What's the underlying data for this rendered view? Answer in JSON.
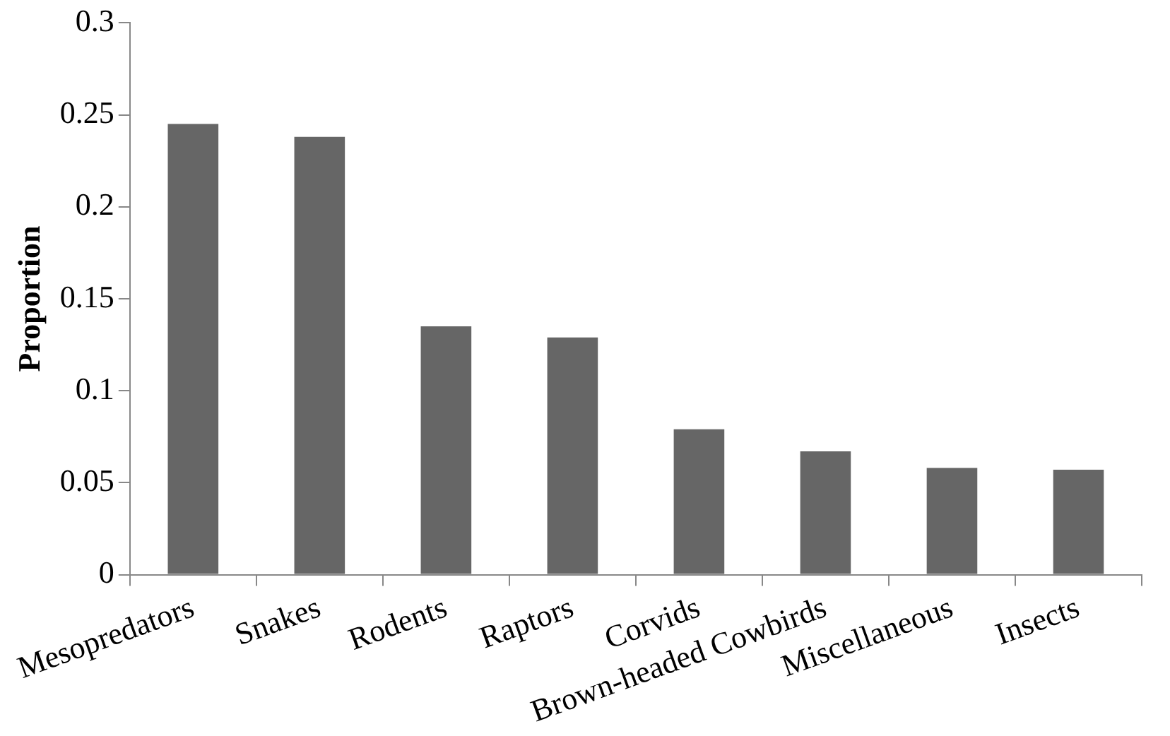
{
  "chart_data": {
    "type": "bar",
    "ylabel": "Proportion",
    "categories": [
      "Mesopredators",
      "Snakes",
      "Rodents",
      "Raptors",
      "Corvids",
      "Brown-headed Cowbirds",
      "Miscellaneous",
      "Insects"
    ],
    "values": [
      0.245,
      0.238,
      0.135,
      0.129,
      0.079,
      0.067,
      0.058,
      0.057
    ],
    "color": "#666666",
    "ylim": [
      0,
      0.3
    ],
    "yticks": [
      0,
      0.05,
      0.1,
      0.15,
      0.2,
      0.25,
      0.3
    ],
    "grid": false,
    "legend": false
  }
}
